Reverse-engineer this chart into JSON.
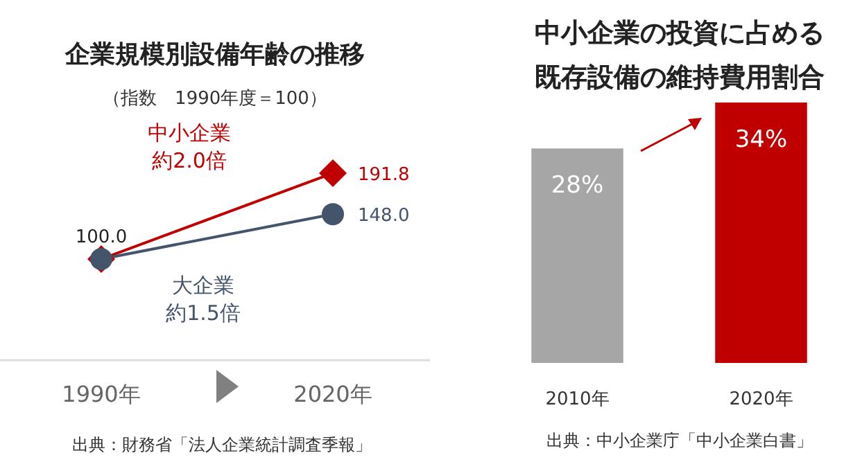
{
  "chart_data": [
    {
      "type": "line",
      "title": "企業規模別設備年齢の推移",
      "subtitle": "（指数　1990年度＝100）",
      "categories": [
        "1990年",
        "2020年"
      ],
      "tick_labels": "x",
      "series": [
        {
          "name": "中小企業",
          "color": "#c00000",
          "marker": "diamond",
          "values": [
            100,
            191.8
          ],
          "value_labels": [
            "100.0",
            "191.8"
          ]
        },
        {
          "name": "大企業",
          "color": "#44546a",
          "marker": "circle",
          "values": [
            100,
            148
          ],
          "value_labels": [
            null,
            "148.0"
          ]
        }
      ],
      "annotations": [
        "約2.0倍",
        "約1.5倍",
        "出典：財務省「法人企業統計調査季報」"
      ]
    },
    {
      "type": "bar",
      "title": "中小企業の投資に占める既存設備の維持費用割合",
      "categories": [
        "2010年",
        "2020年"
      ],
      "values": [
        28,
        34
      ],
      "colors": [
        "#a6a6a6",
        "#c00000"
      ],
      "value_labels": [
        "28%",
        "34%"
      ],
      "tick_labels": "x",
      "annotations": [
        "出典：中小企業庁「中小企業白書」"
      ]
    }
  ]
}
